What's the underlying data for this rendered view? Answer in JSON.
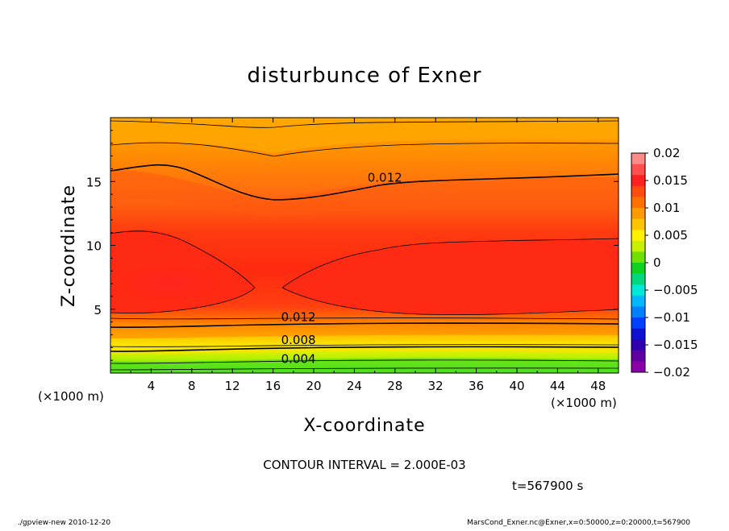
{
  "chart_data": {
    "type": "heatmap",
    "title": "disturbunce of Exner",
    "xlabel": "X-coordinate",
    "ylabel": "Z-coordinate",
    "x_unit": "(×1000 m)",
    "z_unit": "(×1000 m)",
    "xlim": [
      0,
      50
    ],
    "ylim": [
      0,
      20
    ],
    "x_ticks": [
      4,
      8,
      12,
      16,
      20,
      24,
      28,
      32,
      36,
      40,
      44,
      48
    ],
    "y_ticks": [
      5,
      10,
      15
    ],
    "colorbar": {
      "ticks": [
        "0.02",
        "0.015",
        "0.01",
        "0.005",
        "0",
        "−0.005",
        "−0.01",
        "−0.015",
        "−0.02"
      ],
      "range": [
        -0.02,
        0.02
      ]
    },
    "contour_labels": [
      {
        "text": "0.012",
        "x": 27,
        "z": 15.3
      },
      {
        "text": "0.012",
        "x": 18.5,
        "z": 4.4
      },
      {
        "text": "0.008",
        "x": 18.5,
        "z": 2.6
      },
      {
        "text": "0.004",
        "x": 18.5,
        "z": 1.1
      }
    ],
    "contour_interval_text": "CONTOUR INTERVAL = 2.000E-03",
    "time_text": "t=567900 s"
  },
  "footer": {
    "left": "./gpview-new   2010-12-20",
    "right": "MarsCond_Exner.nc@Exner,x=0:50000,z=0:20000,t=567900"
  }
}
